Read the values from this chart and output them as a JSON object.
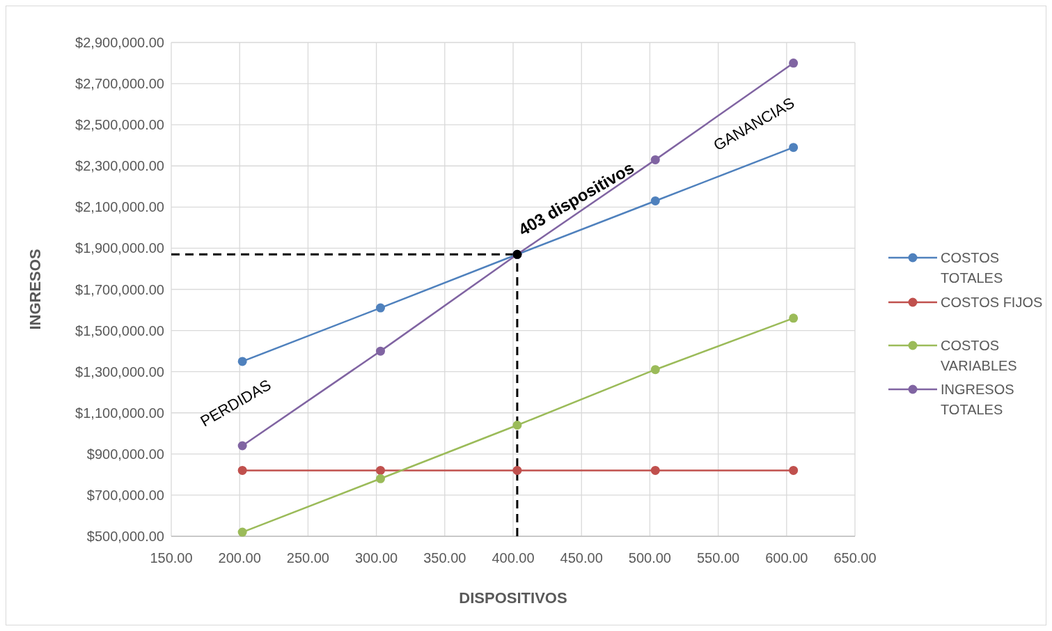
{
  "chart_data": {
    "type": "line",
    "xlabel": "DISPOSITIVOS",
    "ylabel": "INGRESOS",
    "x": [
      202,
      303,
      403,
      504,
      605
    ],
    "xlim": [
      150,
      650
    ],
    "xticks": [
      {
        "value": 150,
        "label": "150.00"
      },
      {
        "value": 200,
        "label": "200.00"
      },
      {
        "value": 250,
        "label": "250.00"
      },
      {
        "value": 300,
        "label": "300.00"
      },
      {
        "value": 350,
        "label": "350.00"
      },
      {
        "value": 400,
        "label": "400.00"
      },
      {
        "value": 450,
        "label": "450.00"
      },
      {
        "value": 500,
        "label": "500.00"
      },
      {
        "value": 550,
        "label": "550.00"
      },
      {
        "value": 600,
        "label": "600.00"
      },
      {
        "value": 650,
        "label": "650.00"
      }
    ],
    "ylim": [
      500000,
      2900000
    ],
    "yticks": [
      {
        "value": 500000,
        "label": "$500,000.00"
      },
      {
        "value": 700000,
        "label": "$700,000.00"
      },
      {
        "value": 900000,
        "label": "$900,000.00"
      },
      {
        "value": 1100000,
        "label": "$1,100,000.00"
      },
      {
        "value": 1300000,
        "label": "$1,300,000.00"
      },
      {
        "value": 1500000,
        "label": "$1,500,000.00"
      },
      {
        "value": 1700000,
        "label": "$1,700,000.00"
      },
      {
        "value": 1900000,
        "label": "$1,900,000.00"
      },
      {
        "value": 2100000,
        "label": "$2,100,000.00"
      },
      {
        "value": 2300000,
        "label": "$2,300,000.00"
      },
      {
        "value": 2500000,
        "label": "$2,500,000.00"
      },
      {
        "value": 2700000,
        "label": "$2,700,000.00"
      },
      {
        "value": 2900000,
        "label": "$2,900,000.00"
      }
    ],
    "grid": true,
    "legend": "right",
    "marker": "circle",
    "line_style": "solid",
    "series": [
      {
        "name": "COSTOS TOTALES",
        "color": "#4f81bd",
        "values": [
          1350000,
          1610000,
          1870000,
          2130000,
          2390000
        ]
      },
      {
        "name": "COSTOS FIJOS",
        "color": "#c0504d",
        "values": [
          820000,
          820000,
          820000,
          820000,
          820000
        ]
      },
      {
        "name": "COSTOS VARIABLES",
        "color": "#9bbb59",
        "values": [
          520000,
          780000,
          1040000,
          1310000,
          1560000
        ]
      },
      {
        "name": "INGRESOS TOTALES",
        "color": "#8064a2",
        "values": [
          940000,
          1400000,
          1870000,
          2330000,
          2800000
        ]
      },
      {
        "type": "scatter",
        "color": "#000000",
        "values": [
          null,
          null,
          1870000,
          null,
          null
        ]
      }
    ],
    "ref_lines": [
      {
        "axis": "y",
        "value": 1870000,
        "color": "#000000",
        "line_style": "dashed"
      },
      {
        "axis": "x",
        "value": 403,
        "color": "#000000",
        "line_style": "dashed"
      }
    ],
    "annotations": [
      {
        "text": "403 dispositivos",
        "x": 403,
        "y": 1870000
      },
      "PERDIDAS",
      "GANANCIAS"
    ]
  }
}
